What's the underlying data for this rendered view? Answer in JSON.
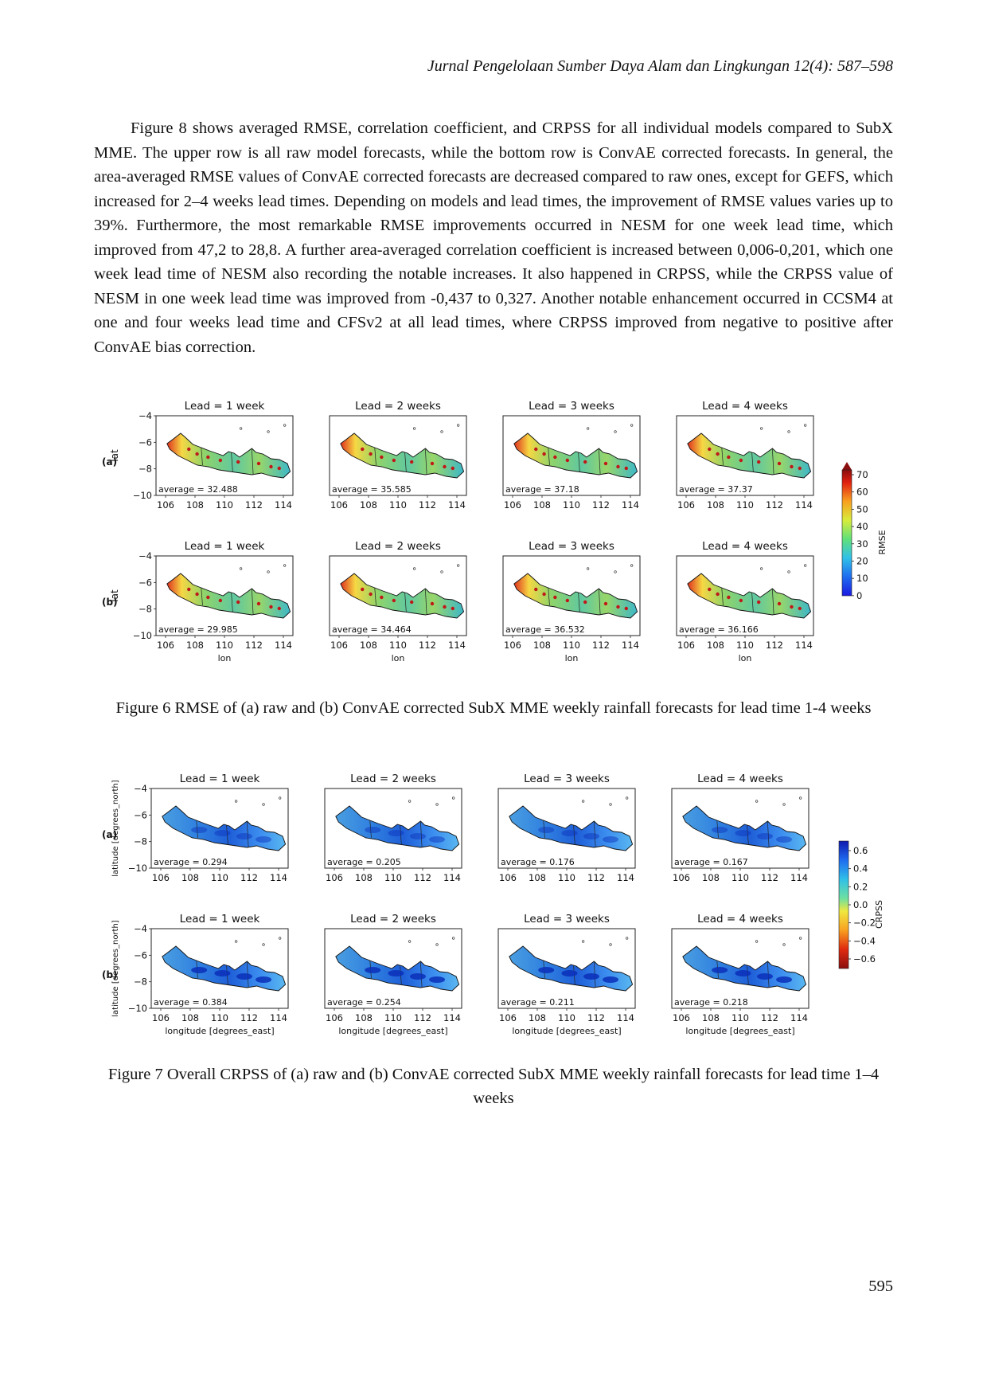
{
  "header": {
    "journal": "Jurnal Pengelolaan Sumber Daya Alam dan Lingkungan 12(4): 587–598"
  },
  "paragraph": "Figure 8 shows averaged RMSE, correlation coefficient, and CRPSS for all individual models compared to SubX MME. The upper row is all raw model forecasts, while the bottom row is ConvAE corrected forecasts. In general, the area-averaged RMSE values of ConvAE corrected forecasts are decreased compared to raw ones, except for GEFS, which increased for 2–4 weeks lead times. Depending on models and lead times, the improvement of RMSE values varies up to 39%. Furthermore, the most remarkable RMSE improvements occurred in NESM for one week lead time, which improved from 47,2 to 28,8. A further area-averaged correlation coefficient is increased between 0,006-0,201, which one week lead time of NESM also recording the notable increases. It also happened in CRPSS, while the CRPSS value of NESM in one week lead time was improved from -0,437 to 0,327. Another notable enhancement occurred in CCSM4 at one and four weeks lead time and CFSv2 at all lead times, where CRPSS improved from negative to positive after ConvAE bias correction.",
  "fig6": {
    "caption": "Figure 6 RMSE of (a) raw and (b) ConvAE corrected SubX MME weekly rainfall forecasts for lead time 1-4 weeks",
    "row_labels": [
      "(a)",
      "(b)"
    ],
    "ylabel": "lat",
    "xlabel": "lon",
    "titles": [
      "Lead = 1 week",
      "Lead = 2 weeks",
      "Lead = 3 weeks",
      "Lead = 4 weeks"
    ],
    "averages": [
      [
        "average = 32.488",
        "average = 35.585",
        "average = 37.18",
        "average = 37.37"
      ],
      [
        "average = 29.985",
        "average = 34.464",
        "average = 36.532",
        "average = 36.166"
      ]
    ],
    "xticks": [
      "106",
      "108",
      "110",
      "112",
      "114"
    ],
    "yticks": [
      "−4",
      "−6",
      "−8",
      "−10"
    ],
    "colorbar": {
      "label": "RMSE",
      "ticks": [
        "70",
        "60",
        "50",
        "40",
        "30",
        "20",
        "10",
        "0"
      ]
    }
  },
  "fig7": {
    "caption": "Figure 7 Overall CRPSS of (a) raw and (b) ConvAE corrected SubX MME weekly rainfall forecasts for lead time 1–4 weeks",
    "row_labels": [
      "(a)",
      "(b)"
    ],
    "ylabel": "latitude [degrees_north]",
    "xlabel": "longitude [degrees_east]",
    "titles": [
      "Lead = 1 week",
      "Lead = 2 weeks",
      "Lead = 3 weeks",
      "Lead = 4 weeks"
    ],
    "averages": [
      [
        "average = 0.294",
        "average = 0.205",
        "average = 0.176",
        "average = 0.167"
      ],
      [
        "average = 0.384",
        "average = 0.254",
        "average = 0.211",
        "average = 0.218"
      ]
    ],
    "xticks": [
      "106",
      "108",
      "110",
      "112",
      "114"
    ],
    "yticks": [
      "−4",
      "−6",
      "−8",
      "−10"
    ],
    "colorbar": {
      "label": "CRPSS",
      "ticks": [
        "0.6",
        "0.4",
        "0.2",
        "0.0",
        "−0.2",
        "−0.4",
        "−0.6"
      ]
    }
  },
  "page_number": "595"
}
